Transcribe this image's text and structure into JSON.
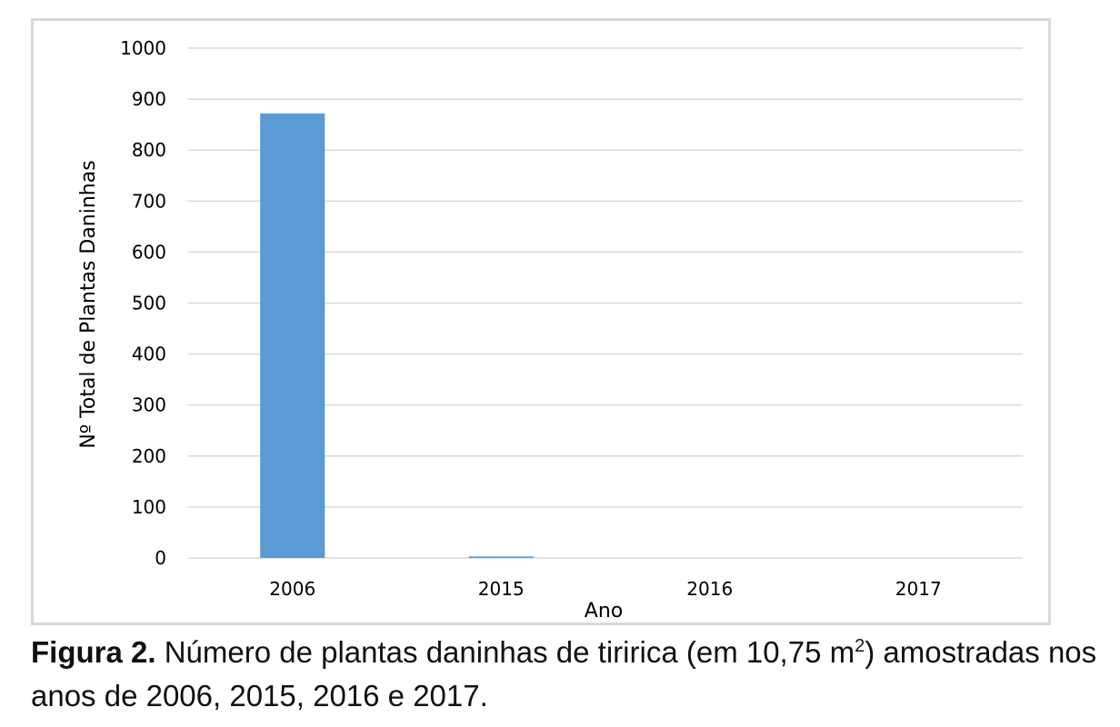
{
  "chart_data": {
    "type": "bar",
    "categories": [
      "2006",
      "2015",
      "2016",
      "2017"
    ],
    "values": [
      872,
      3,
      0,
      0
    ],
    "title": "",
    "xlabel": "Ano",
    "ylabel": "Nº Total de Plantas Daninhas",
    "ylim": [
      0,
      1000
    ],
    "yticks": [
      0,
      100,
      200,
      300,
      400,
      500,
      600,
      700,
      800,
      900,
      1000
    ],
    "grid": true,
    "legend": false,
    "bar_color": "#5b9bd5",
    "grid_color": "#d9d9d9"
  },
  "caption": {
    "label": "Figura 2.",
    "text_before_sup": " Número de plantas daninhas de tiririca (em 10,75 m",
    "sup": "2",
    "text_after_sup": ") amostradas nos anos de 2006, 2015, 2016 e 2017."
  }
}
